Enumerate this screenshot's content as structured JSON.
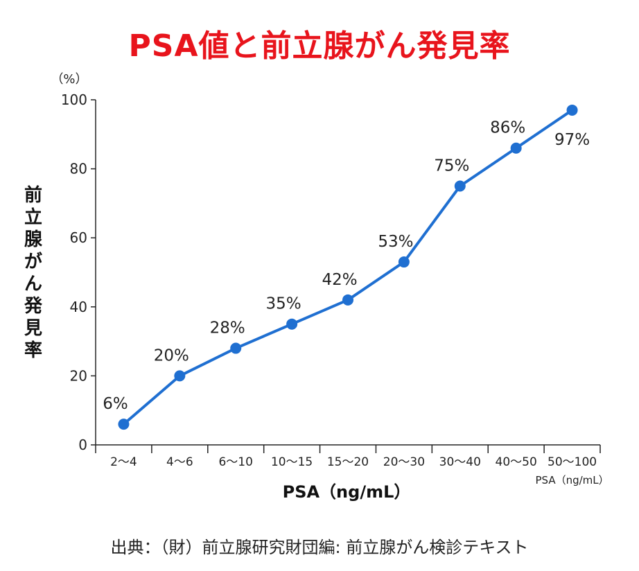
{
  "chart_data": {
    "type": "line",
    "title": "PSA値と前立腺がん発見率",
    "xlabel": "PSA（ng/mL）",
    "xlabel_small": "PSA（ng/mL）",
    "ylabel": "前立腺がん発見率",
    "y_unit": "（%）",
    "ylim": [
      0,
      100
    ],
    "yticks": [
      0,
      20,
      40,
      60,
      80,
      100
    ],
    "categories": [
      "2～4",
      "4～6",
      "6～10",
      "10～15",
      "15～20",
      "20～30",
      "30～40",
      "40～50",
      "50～100"
    ],
    "values": [
      6,
      20,
      28,
      35,
      42,
      53,
      75,
      86,
      97
    ],
    "value_labels": [
      "6%",
      "20%",
      "28%",
      "35%",
      "42%",
      "53%",
      "75%",
      "86%",
      "97%"
    ],
    "grid": false,
    "line_color": "#1f6fd1",
    "title_color": "#e8141c"
  },
  "source": "出典：（財）前立腺研究財団編: 前立腺がん検診テキスト"
}
